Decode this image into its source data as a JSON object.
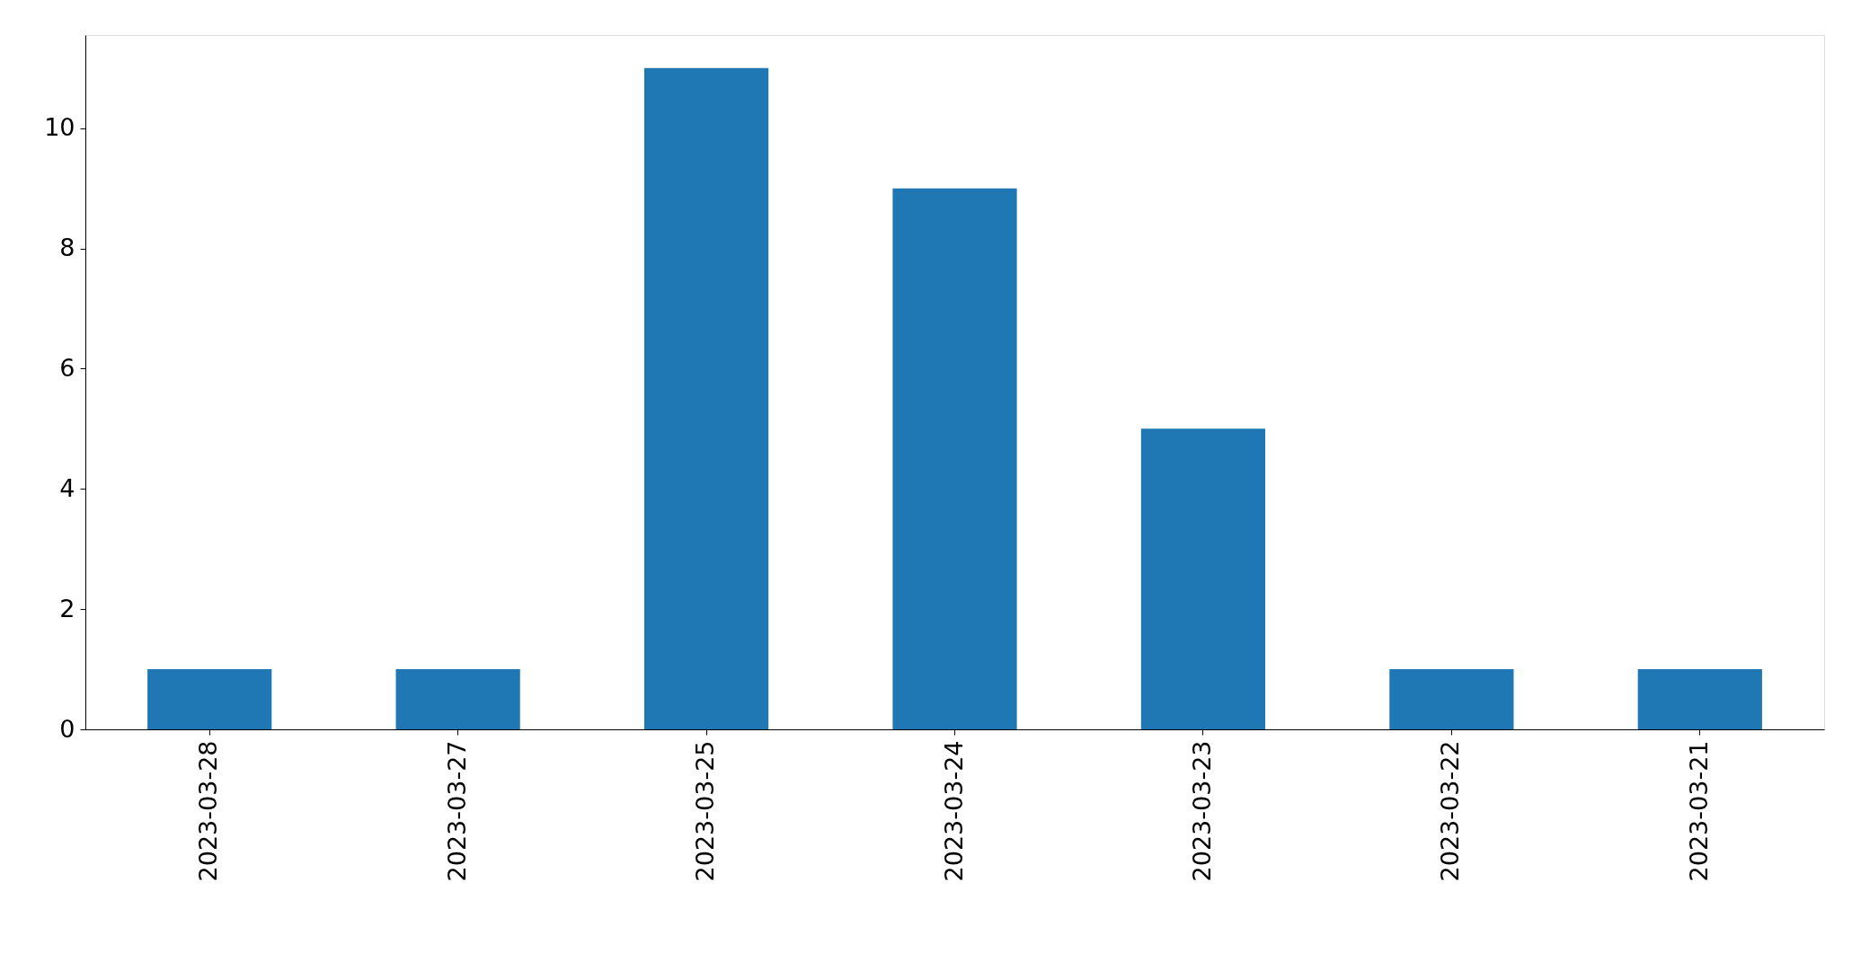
{
  "chart_data": {
    "type": "bar",
    "categories": [
      "2023-03-28",
      "2023-03-27",
      "2023-03-25",
      "2023-03-24",
      "2023-03-23",
      "2023-03-22",
      "2023-03-21"
    ],
    "values": [
      1,
      1,
      11,
      9,
      5,
      1,
      1
    ],
    "color": "#1f77b4",
    "ylim": [
      0,
      11.55
    ],
    "yticks": [
      0,
      2,
      4,
      6,
      8,
      10
    ]
  }
}
